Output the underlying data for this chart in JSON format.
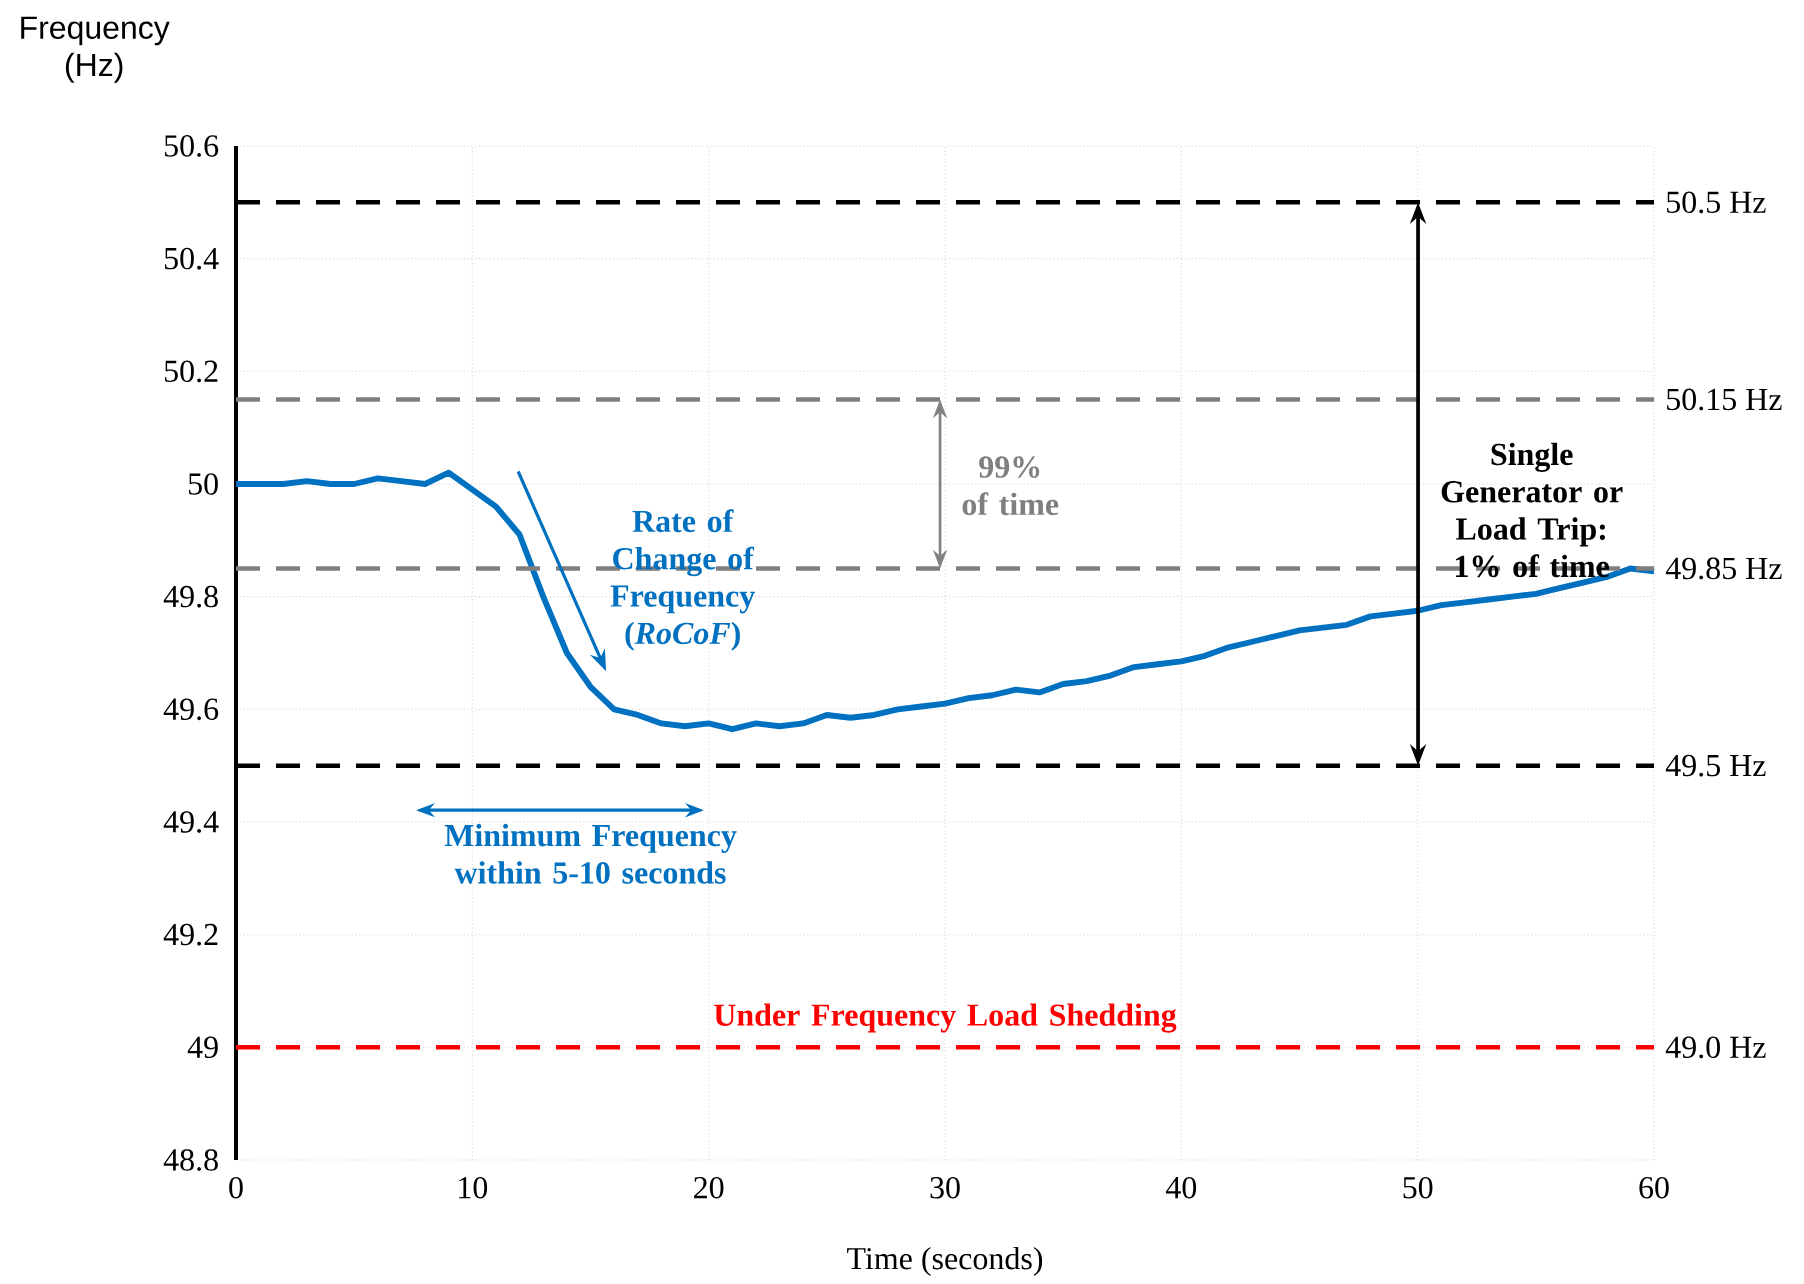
{
  "chart_data": {
    "type": "line",
    "xlabel": "Time (seconds)",
    "ylabel": "Frequency (Hz)",
    "x": [
      0,
      1,
      2,
      3,
      4,
      5,
      6,
      7,
      8,
      9,
      10,
      11,
      12,
      13,
      14,
      15,
      16,
      17,
      18,
      19,
      20,
      21,
      22,
      23,
      24,
      25,
      26,
      27,
      28,
      29,
      30,
      31,
      32,
      33,
      34,
      35,
      36,
      37,
      38,
      39,
      40,
      41,
      42,
      43,
      44,
      45,
      46,
      47,
      48,
      49,
      50,
      51,
      52,
      53,
      54,
      55,
      56,
      57,
      58,
      59,
      60
    ],
    "series": [
      {
        "color": "#0070c0",
        "values": [
          50.0,
          50.0,
          50.0,
          50.005,
          50.0,
          50.0,
          50.01,
          50.005,
          50.0,
          50.02,
          49.99,
          49.96,
          49.91,
          49.8,
          49.7,
          49.64,
          49.6,
          49.59,
          49.575,
          49.57,
          49.575,
          49.565,
          49.575,
          49.57,
          49.575,
          49.59,
          49.585,
          49.59,
          49.6,
          49.605,
          49.61,
          49.62,
          49.625,
          49.635,
          49.63,
          49.645,
          49.65,
          49.66,
          49.675,
          49.68,
          49.685,
          49.695,
          49.71,
          49.72,
          49.73,
          49.74,
          49.745,
          49.75,
          49.765,
          49.77,
          49.775,
          49.785,
          49.79,
          49.795,
          49.8,
          49.805,
          49.815,
          49.825,
          49.835,
          49.85,
          49.845
        ]
      }
    ],
    "xlim": [
      0,
      60
    ],
    "xticks": [
      0,
      10,
      20,
      30,
      40,
      50,
      60
    ],
    "ylim": [
      48.8,
      50.6
    ],
    "yticks": [
      48.8,
      49,
      49.2,
      49.4,
      49.6,
      49.8,
      50,
      50.2,
      50.4,
      50.6
    ],
    "grid": true,
    "marker": "none",
    "line_style": "solid",
    "ref_lines": [
      {
        "axis": "y",
        "value": 50.5,
        "label": "50.5 Hz",
        "color": "#000000",
        "line_style": "dashed"
      },
      {
        "axis": "y",
        "value": 50.15,
        "label": "50.15 Hz",
        "color": "#7f7f7f",
        "line_style": "dashed"
      },
      {
        "axis": "y",
        "value": 49.85,
        "label": "49.85 Hz",
        "color": "#7f7f7f",
        "line_style": "dashed"
      },
      {
        "axis": "y",
        "value": 49.5,
        "label": "49.5 Hz",
        "color": "#000000",
        "line_style": "dashed"
      },
      {
        "axis": "y",
        "value": 49,
        "label": "49.0 Hz",
        "color": "#ff0000",
        "line_style": "dashed"
      }
    ],
    "annotations": [
      "Rate of Change of Frequency (*RoCoF*)",
      "Minimum Frequency within 5-10 seconds",
      "99% of time",
      "Single Generator or Load Trip: 1% of time",
      "Under Frequency Load Shedding"
    ]
  }
}
